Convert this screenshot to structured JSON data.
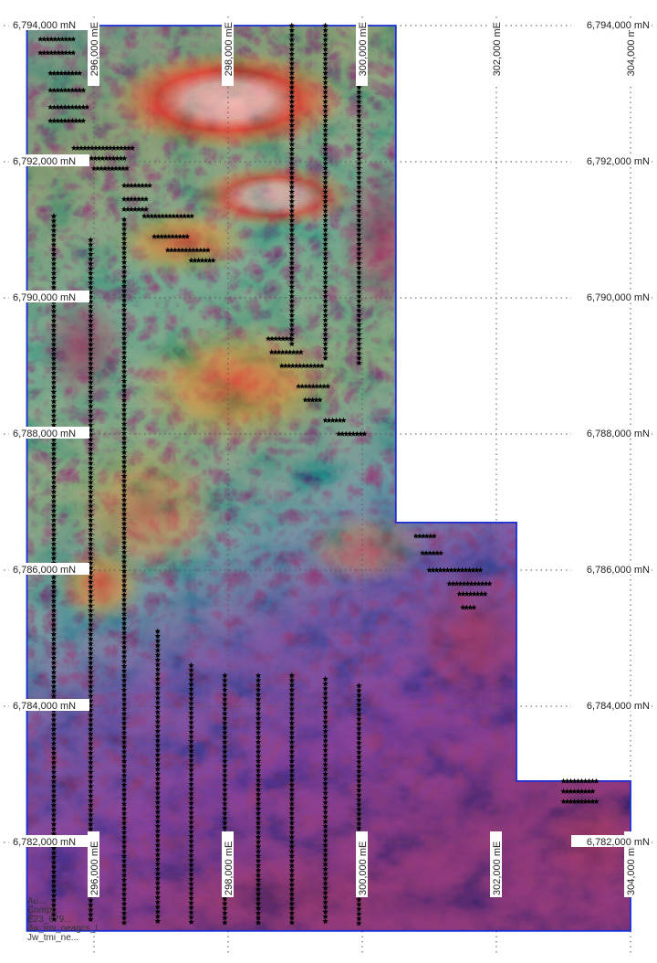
{
  "map": {
    "type": "aeromagnetic-survey-map",
    "coordinate_system": "UTM (mE / mN)",
    "easting_ticks": [
      {
        "value": 296000,
        "label": "296,000 mE"
      },
      {
        "value": 298000,
        "label": "298,000 mE"
      },
      {
        "value": 300000,
        "label": "300,000 mE"
      },
      {
        "value": 302000,
        "label": "302,000 mE"
      },
      {
        "value": 304000,
        "label": "304,000 mE"
      }
    ],
    "northing_ticks": [
      {
        "value": 6794000,
        "label": "6,794,000 mN"
      },
      {
        "value": 6792000,
        "label": "6,792,000 mN"
      },
      {
        "value": 6790000,
        "label": "6,790,000 mN"
      },
      {
        "value": 6788000,
        "label": "6,788,000 mN"
      },
      {
        "value": 6786000,
        "label": "6,786,000 mN"
      },
      {
        "value": 6784000,
        "label": "6,784,000 mN"
      },
      {
        "value": 6782000,
        "label": "6,782,000 mN"
      }
    ],
    "grid_lines": "dotted",
    "colors": {
      "tenement_boundary": "#1a2fd6",
      "survey_points": "#000000",
      "grid": "#555555",
      "palette_low": "#6d3c8f",
      "palette_mid": "#3de8c8",
      "palette_high": "#e83a2a",
      "palette_peak": "#f4f4f4"
    },
    "survey_lines_north_south": [
      {
        "easting": 295400,
        "from": 6791200,
        "to": 6780800
      },
      {
        "easting": 295950,
        "from": 6790850,
        "to": 6780800
      },
      {
        "easting": 296450,
        "from": 6791150,
        "to": 6780800
      },
      {
        "easting": 296950,
        "from": 6785100,
        "to": 6780800
      },
      {
        "easting": 297450,
        "from": 6784600,
        "to": 6780800
      },
      {
        "easting": 297950,
        "from": 6784450,
        "to": 6780800
      },
      {
        "easting": 298450,
        "from": 6784450,
        "to": 6780800
      },
      {
        "easting": 298950,
        "from": 6784450,
        "to": 6780800
      },
      {
        "easting": 299450,
        "from": 6784400,
        "to": 6780800
      },
      {
        "easting": 299950,
        "from": 6784300,
        "to": 6780800
      },
      {
        "easting": 298950,
        "from": 6794000,
        "to": 6789300
      },
      {
        "easting": 299450,
        "from": 6794000,
        "to": 6789100
      },
      {
        "easting": 299950,
        "from": 6794000,
        "to": 6789000
      }
    ],
    "survey_lines_east_west": [
      {
        "northing": 6793800,
        "from": 295200,
        "to": 295700
      },
      {
        "northing": 6793600,
        "from": 295200,
        "to": 295700
      },
      {
        "northing": 6793300,
        "from": 295350,
        "to": 295800
      },
      {
        "northing": 6793050,
        "from": 295350,
        "to": 295850
      },
      {
        "northing": 6792800,
        "from": 295350,
        "to": 295900
      },
      {
        "northing": 6792600,
        "from": 295350,
        "to": 295850
      },
      {
        "northing": 6792200,
        "from": 295700,
        "to": 296600
      },
      {
        "northing": 6792050,
        "from": 295800,
        "to": 296500
      },
      {
        "northing": 6791900,
        "from": 296000,
        "to": 296500
      },
      {
        "northing": 6791650,
        "from": 296450,
        "to": 296850
      },
      {
        "northing": 6791450,
        "from": 296450,
        "to": 296800
      },
      {
        "northing": 6791300,
        "from": 296450,
        "to": 296800
      },
      {
        "northing": 6791200,
        "from": 296750,
        "to": 297500
      },
      {
        "northing": 6790900,
        "from": 296900,
        "to": 297400
      },
      {
        "northing": 6790700,
        "from": 297100,
        "to": 297750
      },
      {
        "northing": 6790550,
        "from": 297450,
        "to": 297800
      },
      {
        "northing": 6789400,
        "from": 298600,
        "to": 298950
      },
      {
        "northing": 6789200,
        "from": 298650,
        "to": 299100
      },
      {
        "northing": 6789000,
        "from": 298800,
        "to": 299400
      },
      {
        "northing": 6788700,
        "from": 299050,
        "to": 299500
      },
      {
        "northing": 6788500,
        "from": 299150,
        "to": 299400
      },
      {
        "northing": 6788200,
        "from": 299450,
        "to": 299750
      },
      {
        "northing": 6788000,
        "from": 299650,
        "to": 300050
      },
      {
        "northing": 6786500,
        "from": 300800,
        "to": 301100
      },
      {
        "northing": 6786250,
        "from": 300900,
        "to": 301200
      },
      {
        "northing": 6786000,
        "from": 301000,
        "to": 301800
      },
      {
        "northing": 6785800,
        "from": 301300,
        "to": 301900
      },
      {
        "northing": 6785650,
        "from": 301450,
        "to": 301850
      },
      {
        "northing": 6785450,
        "from": 301500,
        "to": 301700
      },
      {
        "northing": 6782900,
        "from": 303000,
        "to": 303500
      },
      {
        "northing": 6782750,
        "from": 303000,
        "to": 303450
      },
      {
        "northing": 6782600,
        "from": 303000,
        "to": 303500
      }
    ],
    "tenement_polygon": [
      [
        295000,
        6794000
      ],
      [
        300500,
        6794000
      ],
      [
        300500,
        6786700
      ],
      [
        302300,
        6786700
      ],
      [
        302300,
        6782900
      ],
      [
        304000,
        6782900
      ],
      [
        304000,
        6780700
      ],
      [
        295000,
        6780700
      ]
    ],
    "legend_lines": [
      "Au...",
      "Compl...",
      "E23_679...",
      "Jw_tmi_neagcs_l",
      "Jw_tmi_ne..."
    ]
  }
}
